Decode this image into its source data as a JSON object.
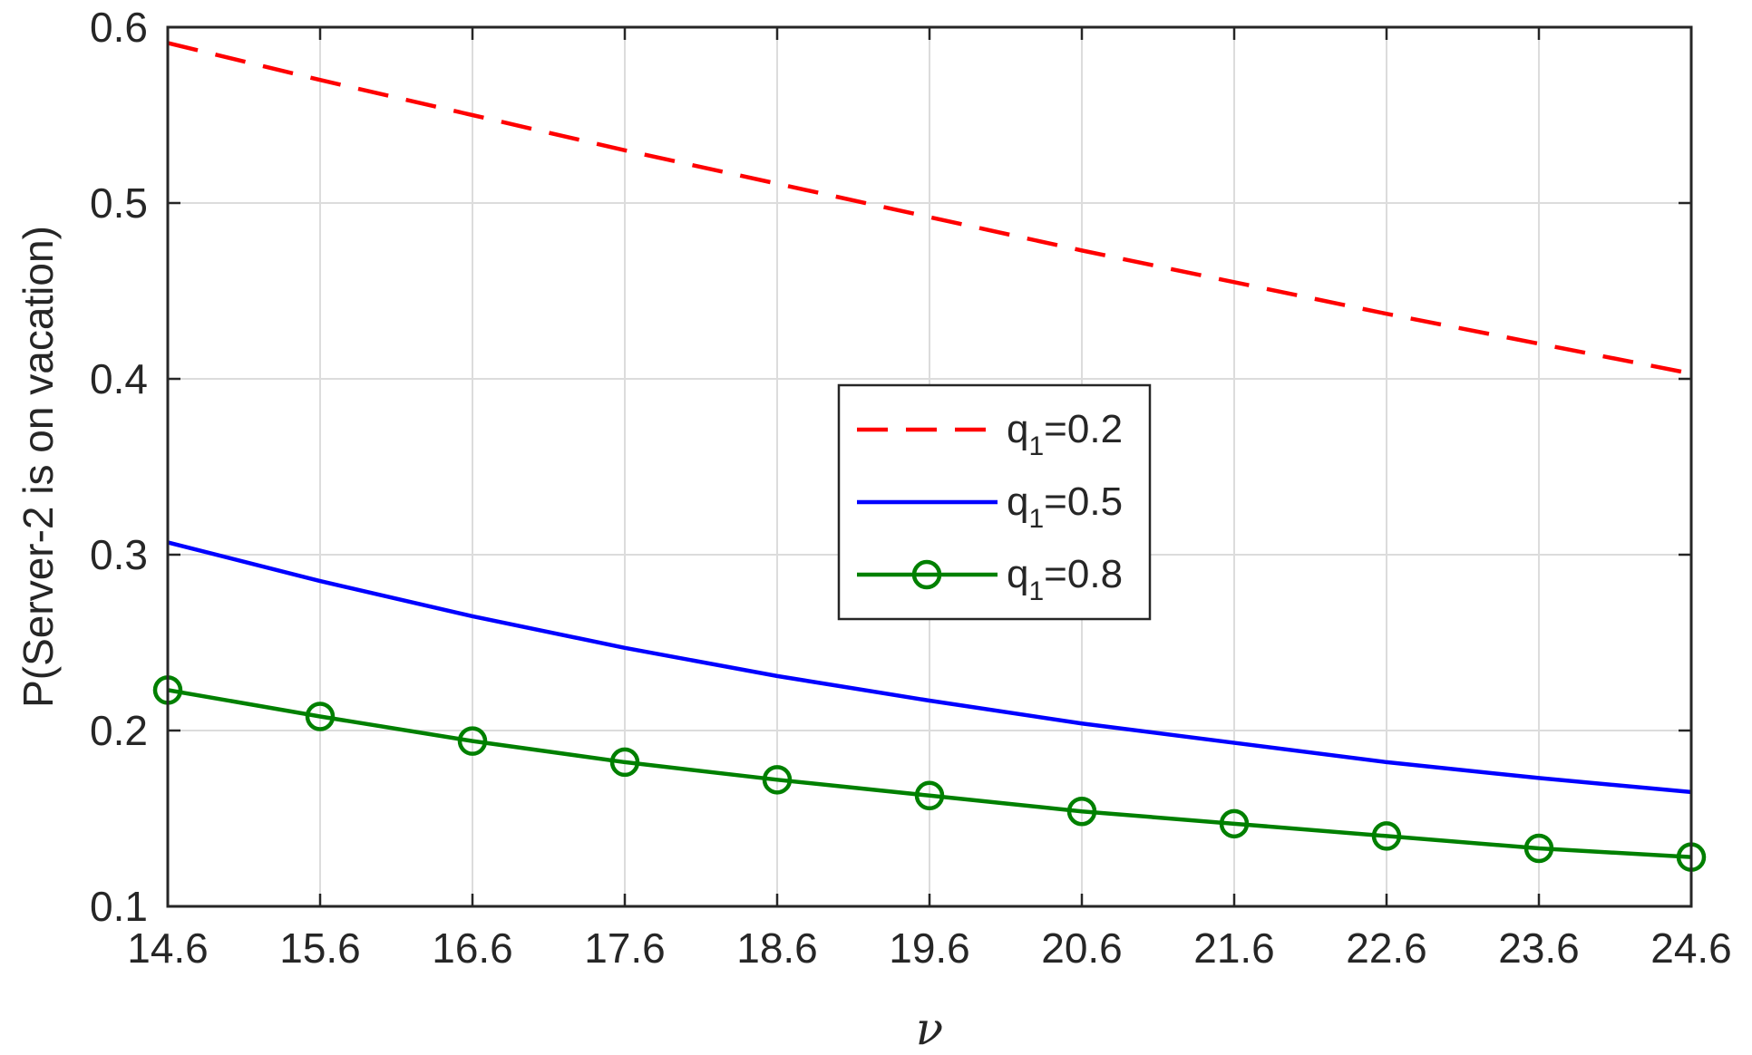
{
  "chart_data": {
    "type": "line",
    "xlabel": "ν",
    "ylabel": "P(Server-2 is on vacation)",
    "xlim": [
      14.6,
      24.6
    ],
    "ylim": [
      0.1,
      0.6
    ],
    "x": [
      14.6,
      15.6,
      16.6,
      17.6,
      18.6,
      19.6,
      20.6,
      21.6,
      22.6,
      23.6,
      24.6
    ],
    "xticks": [
      "14.6",
      "15.6",
      "16.6",
      "17.6",
      "18.6",
      "19.6",
      "20.6",
      "21.6",
      "22.6",
      "23.6",
      "24.6"
    ],
    "yticks": [
      "0.1",
      "0.2",
      "0.3",
      "0.4",
      "0.5",
      "0.6"
    ],
    "grid": true,
    "legend_position": "center",
    "series": [
      {
        "name": "q1=0.2",
        "legend_base": "q",
        "legend_sub": "1",
        "legend_rest": "=0.2",
        "color": "#ff0000",
        "style": "dashed",
        "marker": "none",
        "values": [
          0.591,
          0.57,
          0.55,
          0.53,
          0.511,
          0.492,
          0.473,
          0.455,
          0.437,
          0.42,
          0.403
        ]
      },
      {
        "name": "q1=0.5",
        "legend_base": "q",
        "legend_sub": "1",
        "legend_rest": "=0.5",
        "color": "#0000ff",
        "style": "solid",
        "marker": "none",
        "values": [
          0.307,
          0.285,
          0.265,
          0.247,
          0.231,
          0.217,
          0.204,
          0.193,
          0.182,
          0.173,
          0.165
        ]
      },
      {
        "name": "q1=0.8",
        "legend_base": "q",
        "legend_sub": "1",
        "legend_rest": "=0.8",
        "color": "#008000",
        "style": "solid",
        "marker": "circle",
        "values": [
          0.223,
          0.208,
          0.194,
          0.182,
          0.172,
          0.163,
          0.154,
          0.147,
          0.14,
          0.133,
          0.128
        ]
      }
    ]
  }
}
